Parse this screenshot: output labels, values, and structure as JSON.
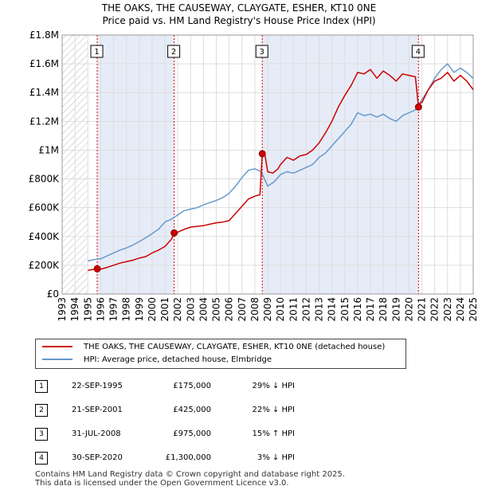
{
  "title_line1": "THE OAKS, THE CAUSEWAY, CLAYGATE, ESHER, KT10 0NE",
  "title_line2": "Price paid vs. HM Land Registry's House Price Index (HPI)",
  "colors": {
    "property": "#cc0000",
    "hpi": "#6699cc",
    "shade": "#e6ecf7",
    "grid": "#dddddd",
    "sale_line": "#dd0000"
  },
  "legend": {
    "property_label": "THE OAKS, THE CAUSEWAY, CLAYGATE, ESHER, KT10 0NE (detached house)",
    "hpi_label": "HPI: Average price, detached house, Elmbridge"
  },
  "sales": [
    {
      "num": "1",
      "date": "22-SEP-1995",
      "price": "£175,000",
      "hpi": "29% ↓ HPI"
    },
    {
      "num": "2",
      "date": "21-SEP-2001",
      "price": "£425,000",
      "hpi": "22% ↓ HPI"
    },
    {
      "num": "3",
      "date": "31-JUL-2008",
      "price": "£975,000",
      "hpi": "15% ↑ HPI"
    },
    {
      "num": "4",
      "date": "30-SEP-2020",
      "price": "£1,300,000",
      "hpi": "3% ↓ HPI"
    }
  ],
  "footer": {
    "line1": "Contains HM Land Registry data © Crown copyright and database right 2025.",
    "line2": "This data is licensed under the Open Government Licence v3.0."
  },
  "chart_data": {
    "type": "line",
    "title": "THE OAKS, THE CAUSEWAY, CLAYGATE, ESHER, KT10 0NE — Price paid vs. HM Land Registry's House Price Index (HPI)",
    "xlabel": "",
    "ylabel": "",
    "xlim": [
      1993,
      2025
    ],
    "ylim": [
      0,
      1800000
    ],
    "yticks": [
      0,
      200000,
      400000,
      600000,
      800000,
      1000000,
      1200000,
      1400000,
      1600000,
      1800000
    ],
    "ytick_labels": [
      "£0",
      "£200K",
      "£400K",
      "£600K",
      "£800K",
      "£1M",
      "£1.2M",
      "£1.4M",
      "£1.6M",
      "£1.8M"
    ],
    "xticks": [
      1993,
      1994,
      1995,
      1996,
      1997,
      1998,
      1999,
      2000,
      2001,
      2002,
      2003,
      2004,
      2005,
      2006,
      2007,
      2008,
      2009,
      2010,
      2011,
      2012,
      2013,
      2014,
      2015,
      2016,
      2017,
      2018,
      2019,
      2020,
      2021,
      2022,
      2023,
      2024,
      2025
    ],
    "hatched_ranges": [
      [
        1993,
        1995
      ],
      [
        2025,
        2025.1
      ]
    ],
    "grid": true,
    "legend_position": "below",
    "series": [
      {
        "name": "THE OAKS, THE CAUSEWAY, CLAYGATE, ESHER, KT10 0NE (detached house)",
        "color": "#cc0000",
        "x": [
          1995.0,
          1995.73,
          1996.0,
          1996.5,
          1997.0,
          1997.5,
          1998.0,
          1998.5,
          1999.0,
          1999.5,
          2000.0,
          2000.5,
          2001.0,
          2001.5,
          2001.72,
          2002.0,
          2002.5,
          2003.0,
          2003.5,
          2004.0,
          2004.5,
          2005.0,
          2005.5,
          2006.0,
          2006.5,
          2007.0,
          2007.5,
          2008.0,
          2008.4,
          2008.58,
          2008.8,
          2009.0,
          2009.4,
          2009.8,
          2010.0,
          2010.5,
          2011.0,
          2011.5,
          2012.0,
          2012.5,
          2013.0,
          2013.5,
          2014.0,
          2014.5,
          2015.0,
          2015.5,
          2016.0,
          2016.5,
          2017.0,
          2017.5,
          2018.0,
          2018.5,
          2019.0,
          2019.5,
          2020.0,
          2020.5,
          2020.74,
          2020.9,
          2021.0,
          2021.5,
          2022.0,
          2022.5,
          2023.0,
          2023.5,
          2024.0,
          2024.5,
          2025.0
        ],
        "y": [
          165000,
          175000,
          172000,
          185000,
          200000,
          215000,
          225000,
          235000,
          250000,
          260000,
          285000,
          305000,
          330000,
          380000,
          425000,
          430000,
          450000,
          465000,
          470000,
          475000,
          485000,
          495000,
          500000,
          510000,
          560000,
          610000,
          660000,
          680000,
          690000,
          975000,
          960000,
          850000,
          840000,
          870000,
          900000,
          950000,
          930000,
          960000,
          970000,
          1000000,
          1050000,
          1120000,
          1200000,
          1300000,
          1380000,
          1450000,
          1540000,
          1530000,
          1560000,
          1500000,
          1550000,
          1520000,
          1480000,
          1530000,
          1520000,
          1510000,
          1300000,
          1330000,
          1330000,
          1420000,
          1480000,
          1500000,
          1540000,
          1480000,
          1520000,
          1480000,
          1420000
        ]
      },
      {
        "name": "HPI: Average price, detached house, Elmbridge",
        "color": "#6699cc",
        "x": [
          1995.0,
          1995.5,
          1996.0,
          1996.5,
          1997.0,
          1997.5,
          1998.0,
          1998.5,
          1999.0,
          1999.5,
          2000.0,
          2000.5,
          2001.0,
          2001.5,
          2002.0,
          2002.5,
          2003.0,
          2003.5,
          2004.0,
          2004.5,
          2005.0,
          2005.5,
          2006.0,
          2006.5,
          2007.0,
          2007.5,
          2008.0,
          2008.5,
          2009.0,
          2009.5,
          2010.0,
          2010.5,
          2011.0,
          2011.5,
          2012.0,
          2012.5,
          2013.0,
          2013.5,
          2014.0,
          2014.5,
          2015.0,
          2015.5,
          2016.0,
          2016.5,
          2017.0,
          2017.5,
          2018.0,
          2018.5,
          2019.0,
          2019.5,
          2020.0,
          2020.5,
          2021.0,
          2021.5,
          2022.0,
          2022.5,
          2023.0,
          2023.5,
          2024.0,
          2024.5,
          2025.0
        ],
        "y": [
          230000,
          240000,
          245000,
          265000,
          285000,
          305000,
          320000,
          340000,
          365000,
          390000,
          420000,
          450000,
          500000,
          520000,
          550000,
          580000,
          590000,
          600000,
          620000,
          635000,
          650000,
          670000,
          700000,
          750000,
          810000,
          860000,
          870000,
          850000,
          750000,
          780000,
          830000,
          850000,
          840000,
          860000,
          880000,
          900000,
          950000,
          980000,
          1030000,
          1080000,
          1130000,
          1180000,
          1260000,
          1240000,
          1250000,
          1230000,
          1250000,
          1220000,
          1200000,
          1240000,
          1260000,
          1280000,
          1350000,
          1420000,
          1500000,
          1560000,
          1600000,
          1540000,
          1570000,
          1540000,
          1500000
        ]
      }
    ],
    "sale_markers": [
      {
        "label": "1",
        "x": 1995.73,
        "y": 175000
      },
      {
        "label": "2",
        "x": 2001.72,
        "y": 425000
      },
      {
        "label": "3",
        "x": 2008.58,
        "y": 975000
      },
      {
        "label": "4",
        "x": 2020.74,
        "y": 1300000
      }
    ]
  }
}
